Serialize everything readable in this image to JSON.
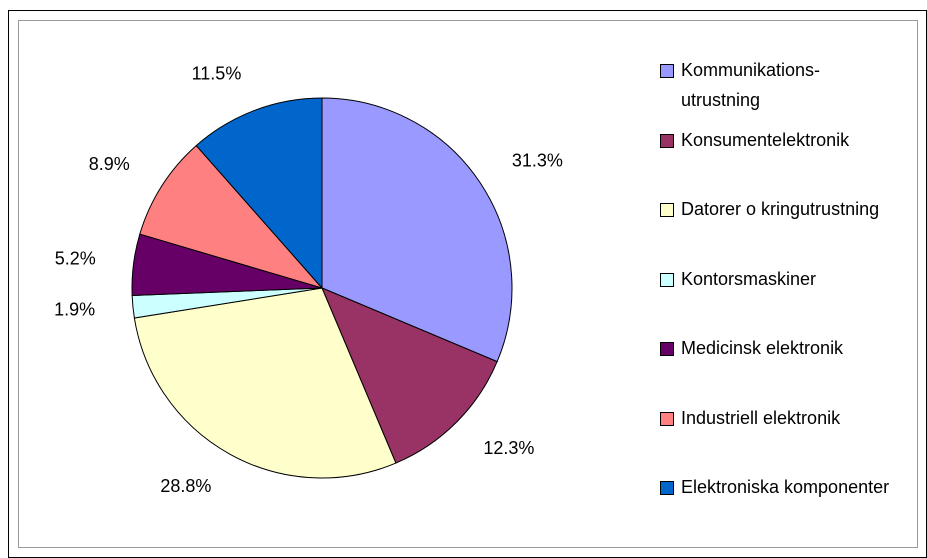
{
  "chart_data": {
    "type": "pie",
    "categories": [
      "Kommunikations-utrustning",
      "Konsumentelektronik",
      "Datorer o kringutrustning",
      "Kontorsmaskiner",
      "Medicinsk elektronik",
      "Industriell elektronik",
      "Elektroniska komponenter"
    ],
    "values": [
      31.3,
      12.3,
      28.8,
      1.9,
      5.2,
      8.9,
      11.5
    ],
    "value_labels": [
      "31.3%",
      "12.3%",
      "28.8%",
      "1.9%",
      "5.2%",
      "8.9%",
      "11.5%"
    ],
    "colors": [
      "#9999ff",
      "#993366",
      "#ffffcc",
      "#ccffff",
      "#660066",
      "#ff8080",
      "#0066cc"
    ],
    "legend": "right"
  }
}
